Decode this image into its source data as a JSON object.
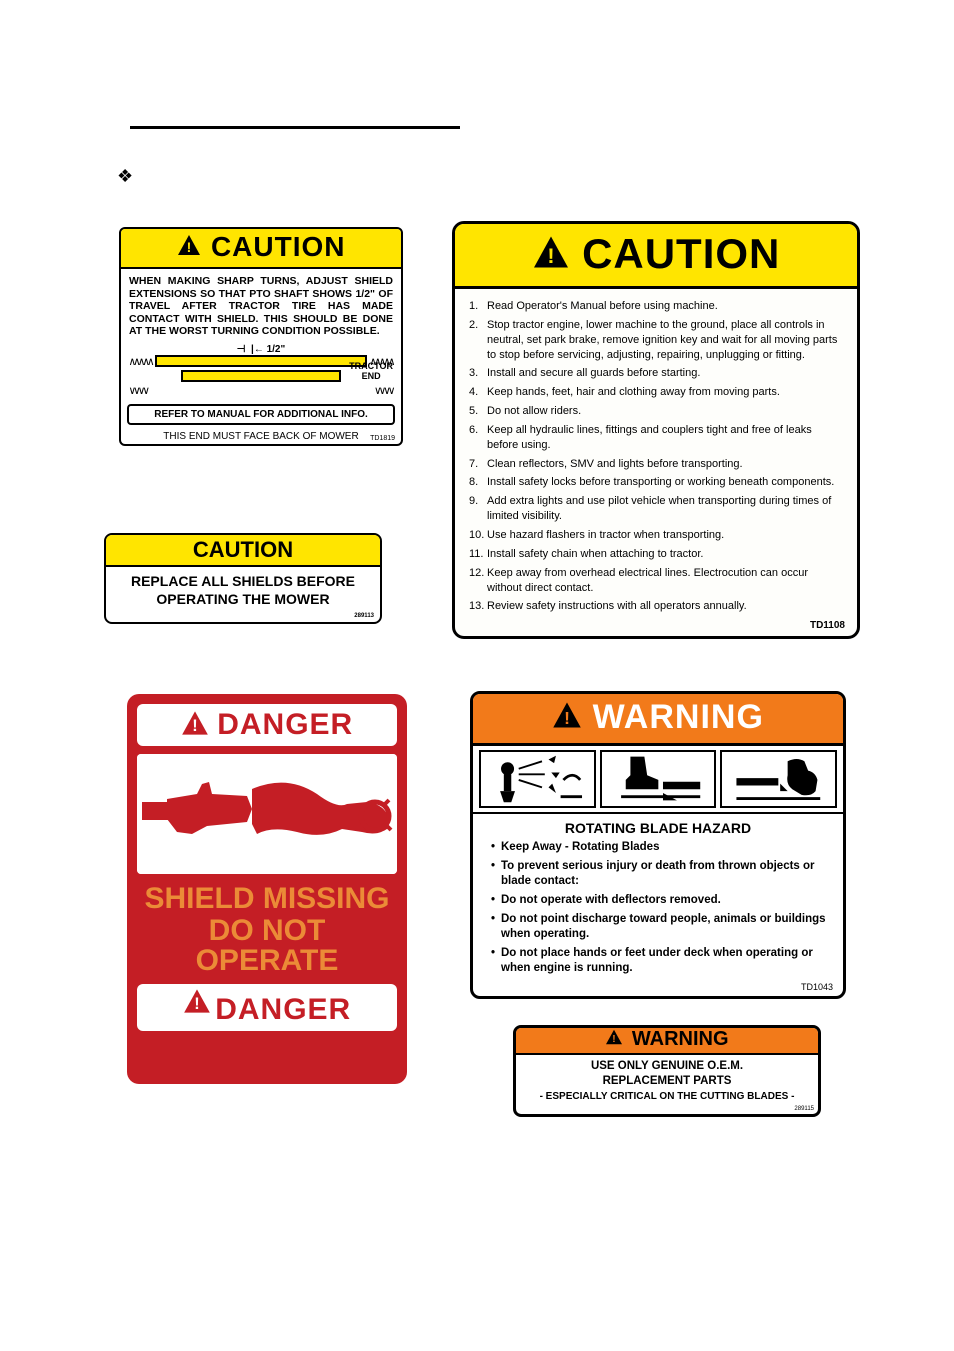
{
  "colors": {
    "caution_yellow": "#ffe500",
    "danger_red": "#c41e25",
    "warning_orange": "#f27a1a",
    "danger_text_orange": "#eb8b37"
  },
  "caution_pto": {
    "hdr": "CAUTION",
    "body": "WHEN MAKING SHARP TURNS, ADJUST SHIELD EXTENSIONS SO THAT PTO SHAFT SHOWS 1/2\" OF TRAVEL AFTER TRACTOR TIRE HAS MADE CONTACT WITH SHIELD. THIS SHOULD BE DONE AT THE WORST TURNING CONDITION POSSIBLE.",
    "dim": "1/2\"",
    "tractor_end": "TRACTOR\nEND",
    "refbox": "REFER TO MANUAL FOR ADDITIONAL INFO.",
    "facetxt": "THIS END MUST FACE BACK OF MOWER",
    "code": "TD1819"
  },
  "caution_replace": {
    "hdr": "CAUTION",
    "line1": "REPLACE ALL SHIELDS BEFORE",
    "line2": "OPERATING THE MOWER",
    "code": "289113"
  },
  "danger_shield": {
    "hdr": "DANGER",
    "line1": "SHIELD MISSING",
    "line2": "DO NOT OPERATE",
    "ftr": "DANGER"
  },
  "caution_list": {
    "hdr": "CAUTION",
    "items": [
      "Read Operator's Manual before using machine.",
      "Stop tractor engine, lower machine to the ground, place all controls in neutral, set park brake, remove ignition key and wait for all moving parts to stop before servicing, adjusting, repairing, unplugging or fitting.",
      "Install and secure all guards before starting.",
      "Keep hands, feet, hair and clothing away from moving parts.",
      "Do not allow riders.",
      "Keep all hydraulic lines, fittings and couplers tight and free of leaks before using.",
      "Clean reflectors, SMV and lights before transporting.",
      "Install safety locks before transporting or working beneath components.",
      "Add extra lights and use pilot vehicle when transporting during times of limited visibility.",
      "Use hazard flashers in tractor when transporting.",
      "Install safety chain when attaching to tractor.",
      "Keep away from overhead electrical lines. Electrocution can occur without direct contact.",
      "Review safety instructions with all operators annually."
    ],
    "code": "TD1108"
  },
  "warn_blade": {
    "hdr": "WARNING",
    "subhdr": "ROTATING BLADE HAZARD",
    "items": [
      "Keep Away - Rotating Blades",
      "To prevent serious injury or death from thrown objects or blade contact:",
      "Do not operate with deflectors removed.",
      "Do not point discharge toward people, animals or buildings when operating.",
      "Do not place hands or feet under deck when operating or when engine is running."
    ],
    "code": "TD1043"
  },
  "warn_oem": {
    "hdr": "WARNING",
    "line1": "USE ONLY GENUINE O.E.M.",
    "line2": "REPLACEMENT PARTS",
    "line3": "- ESPECIALLY CRITICAL ON THE CUTTING BLADES -",
    "code": "289115"
  }
}
